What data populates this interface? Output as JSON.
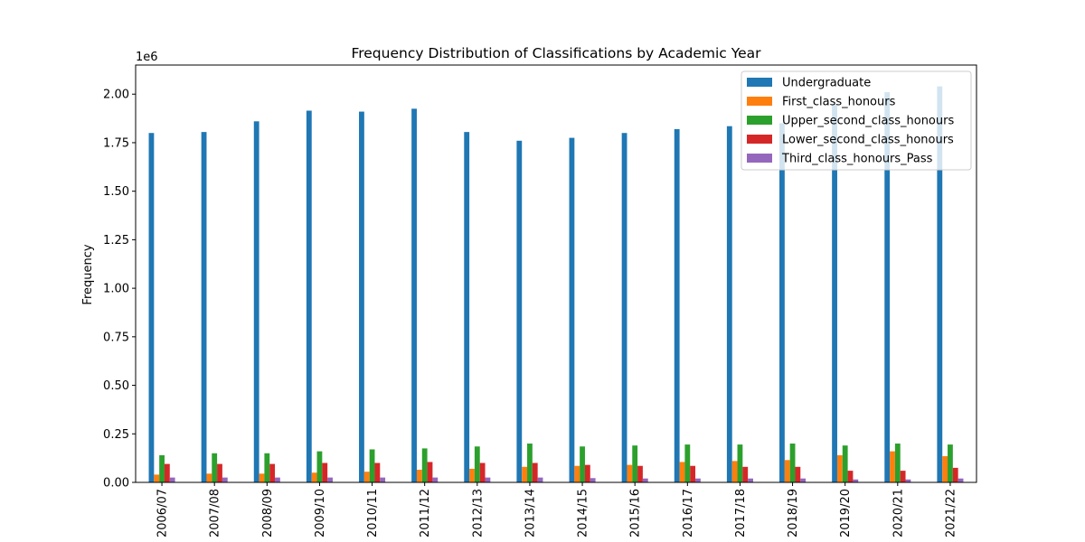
{
  "chart_data": {
    "type": "bar",
    "title": "Frequency Distribution of Classifications by Academic Year",
    "xlabel": "",
    "ylabel": "Frequency",
    "offset_label": "1e6",
    "ylim": [
      0,
      2.15
    ],
    "yticks": [
      "0.00",
      "0.25",
      "0.50",
      "0.75",
      "1.00",
      "1.25",
      "1.50",
      "1.75",
      "2.00"
    ],
    "legend_position": "top-right",
    "grid": false,
    "categories": [
      "2006/07",
      "2007/08",
      "2008/09",
      "2009/10",
      "2010/11",
      "2011/12",
      "2012/13",
      "2013/14",
      "2014/15",
      "2015/16",
      "2016/17",
      "2017/18",
      "2018/19",
      "2019/20",
      "2020/21",
      "2021/22"
    ],
    "series": [
      {
        "name": "Undergraduate",
        "color": "#1f77b4",
        "values": [
          1.8,
          1.805,
          1.86,
          1.915,
          1.91,
          1.925,
          1.805,
          1.76,
          1.775,
          1.8,
          1.82,
          1.835,
          1.85,
          1.95,
          2.01,
          2.04
        ]
      },
      {
        "name": "First_class_honours",
        "color": "#ff7f0e",
        "values": [
          0.04,
          0.045,
          0.045,
          0.05,
          0.055,
          0.065,
          0.07,
          0.08,
          0.085,
          0.09,
          0.105,
          0.11,
          0.115,
          0.14,
          0.16,
          0.135
        ]
      },
      {
        "name": "Upper_second_class_honours",
        "color": "#2ca02c",
        "values": [
          0.14,
          0.15,
          0.15,
          0.16,
          0.17,
          0.175,
          0.185,
          0.2,
          0.185,
          0.19,
          0.195,
          0.195,
          0.2,
          0.19,
          0.2,
          0.195
        ]
      },
      {
        "name": "Lower_second_class_honours",
        "color": "#d62728",
        "values": [
          0.095,
          0.095,
          0.095,
          0.1,
          0.1,
          0.105,
          0.1,
          0.1,
          0.09,
          0.085,
          0.085,
          0.08,
          0.08,
          0.06,
          0.06,
          0.075
        ]
      },
      {
        "name": "Third_class_honours_Pass",
        "color": "#9467bd",
        "values": [
          0.025,
          0.025,
          0.025,
          0.025,
          0.025,
          0.025,
          0.025,
          0.025,
          0.022,
          0.02,
          0.02,
          0.02,
          0.02,
          0.015,
          0.015,
          0.02
        ]
      }
    ]
  }
}
